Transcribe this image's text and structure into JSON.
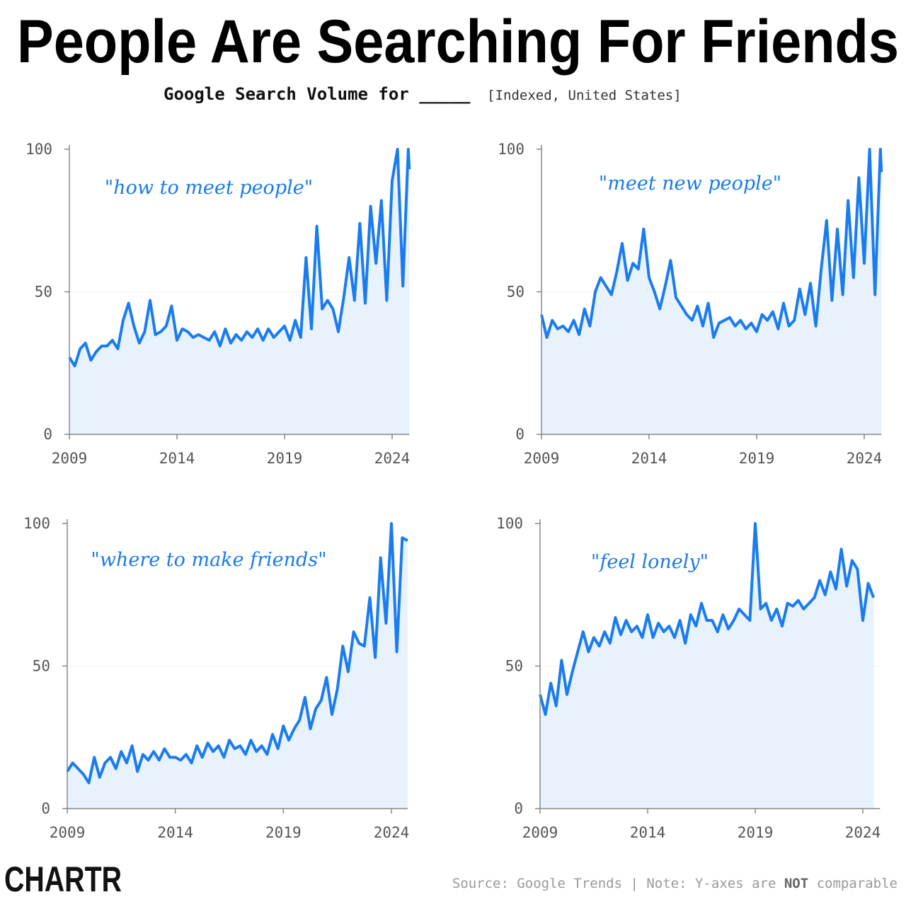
{
  "title": "People Are Searching For Friends",
  "subtitle_bold": "Google Search Volume for _____",
  "subtitle_light": "[Indexed, United States]",
  "logo": "CHARTR",
  "source_prefix": "Source: Google Trends | Note: Y-axes are ",
  "source_emph": "NOT",
  "source_suffix": " comparable",
  "colors": {
    "line": "#1a7cf0",
    "fill": "#e8f2fd",
    "axis": "#888888",
    "label": "#1a7ae8"
  },
  "chart_data": [
    {
      "type": "area",
      "label": "\"how to meet people\"",
      "x_ticks": [
        "2009",
        "2014",
        "2019",
        "2024"
      ],
      "y_ticks": [
        "0",
        "50",
        "100"
      ],
      "xlim": [
        2009,
        2024.8
      ],
      "ylim": [
        0,
        100
      ],
      "x_start": 2009,
      "x_step": 0.25,
      "values": [
        27,
        24,
        30,
        32,
        26,
        29,
        31,
        31,
        33,
        30,
        40,
        46,
        38,
        32,
        36,
        47,
        35,
        36,
        38,
        45,
        33,
        37,
        36,
        34,
        35,
        34,
        33,
        36,
        31,
        37,
        32,
        35,
        33,
        36,
        34,
        37,
        33,
        37,
        34,
        36,
        38,
        33,
        40,
        34,
        62,
        37,
        73,
        44,
        47,
        44,
        36,
        48,
        62,
        47,
        74,
        46,
        80,
        60,
        82,
        47,
        89,
        100,
        52,
        100,
        93
      ]
    },
    {
      "type": "area",
      "label": "\"meet new people\"",
      "x_ticks": [
        "2009",
        "2014",
        "2019",
        "2024"
      ],
      "y_ticks": [
        "0",
        "50",
        "100"
      ],
      "xlim": [
        2009,
        2024.8
      ],
      "ylim": [
        0,
        100
      ],
      "x_start": 2009,
      "x_step": 0.25,
      "values": [
        42,
        34,
        40,
        37,
        38,
        36,
        40,
        35,
        44,
        38,
        50,
        55,
        52,
        49,
        57,
        67,
        54,
        60,
        58,
        72,
        55,
        50,
        44,
        52,
        61,
        48,
        45,
        42,
        40,
        45,
        38,
        46,
        34,
        39,
        40,
        41,
        38,
        40,
        37,
        39,
        36,
        42,
        40,
        43,
        37,
        46,
        38,
        40,
        51,
        42,
        53,
        38,
        58,
        75,
        47,
        72,
        49,
        82,
        55,
        90,
        60,
        100,
        49,
        100,
        92
      ]
    },
    {
      "type": "area",
      "label": "\"where to make friends\"",
      "x_ticks": [
        "2009",
        "2014",
        "2019",
        "2024"
      ],
      "y_ticks": [
        "0",
        "50",
        "100"
      ],
      "xlim": [
        2009,
        2024.75
      ],
      "ylim": [
        0,
        100
      ],
      "x_start": 2009,
      "x_step": 0.25,
      "values": [
        13,
        16,
        14,
        12,
        9,
        18,
        11,
        16,
        18,
        14,
        20,
        16,
        22,
        13,
        19,
        17,
        20,
        17,
        21,
        18,
        18,
        17,
        19,
        16,
        22,
        18,
        23,
        20,
        22,
        18,
        24,
        21,
        22,
        19,
        24,
        20,
        22,
        19,
        26,
        21,
        29,
        24,
        28,
        31,
        39,
        28,
        35,
        38,
        46,
        33,
        42,
        57,
        48,
        62,
        58,
        57,
        74,
        53,
        88,
        65,
        100,
        55,
        95,
        94
      ]
    },
    {
      "type": "area",
      "label": "\"feel lonely\"",
      "x_ticks": [
        "2009",
        "2014",
        "2019",
        "2024"
      ],
      "y_ticks": [
        "0",
        "50",
        "100"
      ],
      "xlim": [
        2009,
        2024.8
      ],
      "ylim": [
        0,
        100
      ],
      "x_start": 2009,
      "x_step": 0.25,
      "values": [
        40,
        33,
        44,
        36,
        52,
        40,
        48,
        55,
        62,
        55,
        60,
        57,
        62,
        58,
        67,
        61,
        66,
        62,
        64,
        60,
        68,
        60,
        65,
        62,
        64,
        60,
        66,
        58,
        68,
        64,
        72,
        66,
        66,
        62,
        68,
        63,
        66,
        70,
        68,
        66,
        100,
        70,
        72,
        66,
        70,
        64,
        72,
        71,
        73,
        70,
        72,
        74,
        80,
        75,
        83,
        77,
        91,
        78,
        87,
        84,
        66,
        79,
        74
      ]
    }
  ]
}
